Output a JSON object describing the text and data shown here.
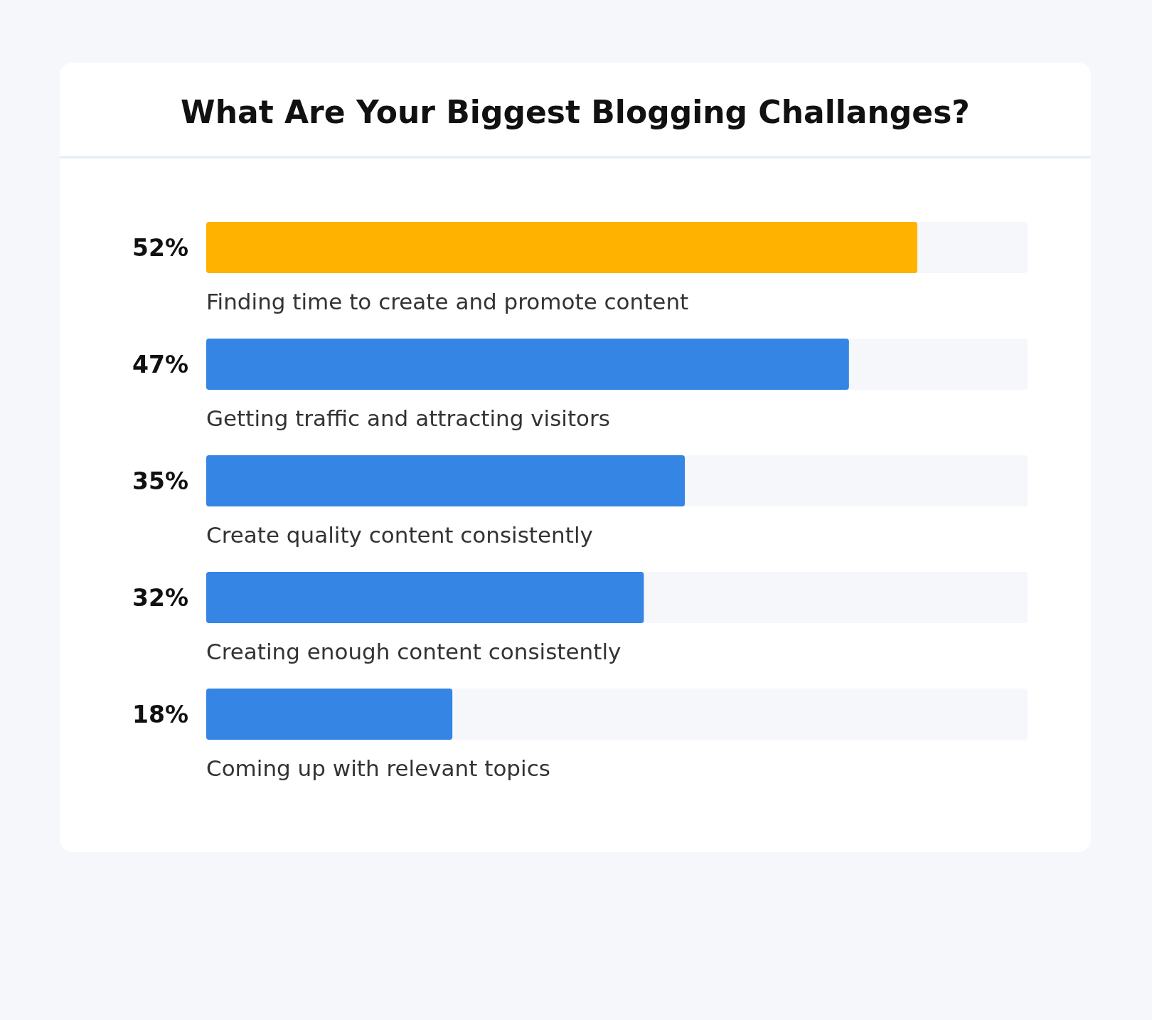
{
  "chart_data": {
    "type": "bar",
    "orientation": "horizontal",
    "title": "What Are Your Biggest Blogging Challanges?",
    "categories": [
      "Finding time to create and promote content",
      "Getting traffic and attracting visitors",
      "Create quality content consistently",
      "Creating enough content consistently",
      "Coming up with relevant topics"
    ],
    "values": [
      52,
      47,
      35,
      32,
      18
    ],
    "colors": [
      "#ffb300",
      "#3585e4",
      "#3585e4",
      "#3585e4",
      "#3585e4"
    ],
    "value_labels": [
      "52%",
      "47%",
      "35%",
      "32%",
      "18%"
    ]
  }
}
